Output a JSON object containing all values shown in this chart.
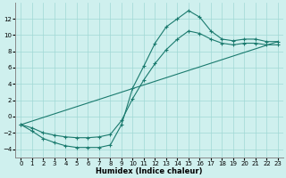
{
  "xlabel": "Humidex (Indice chaleur)",
  "background_color": "#cff0ee",
  "grid_color": "#a0d8d5",
  "line_color": "#1a7a6e",
  "xlim": [
    -0.5,
    23.5
  ],
  "ylim": [
    -5,
    14
  ],
  "xticks": [
    0,
    1,
    2,
    3,
    4,
    5,
    6,
    7,
    8,
    9,
    10,
    11,
    12,
    13,
    14,
    15,
    16,
    17,
    18,
    19,
    20,
    21,
    22,
    23
  ],
  "yticks": [
    -4,
    -2,
    0,
    2,
    4,
    6,
    8,
    10,
    12
  ],
  "line1_x": [
    0,
    1,
    2,
    3,
    4,
    5,
    6,
    7,
    8,
    9,
    10,
    11,
    12,
    13,
    14,
    15,
    16,
    17,
    18,
    19,
    20,
    21,
    22,
    23
  ],
  "line1_y": [
    -1,
    -1.8,
    -2.7,
    -3.2,
    -3.6,
    -3.8,
    -3.8,
    -3.8,
    -3.5,
    -1.0,
    3.5,
    6.2,
    9.0,
    11.0,
    12.0,
    13.0,
    12.2,
    10.5,
    9.5,
    9.3,
    9.5,
    9.5,
    9.2,
    9.2
  ],
  "line2_x": [
    0,
    1,
    2,
    3,
    4,
    5,
    6,
    7,
    8,
    9,
    10,
    11,
    12,
    13,
    14,
    15,
    16,
    17,
    18,
    19,
    20,
    21,
    22,
    23
  ],
  "line2_y": [
    -1,
    -1.4,
    -2.0,
    -2.3,
    -2.5,
    -2.6,
    -2.6,
    -2.5,
    -2.2,
    -0.5,
    2.2,
    4.5,
    6.5,
    8.2,
    9.5,
    10.5,
    10.2,
    9.5,
    9.0,
    8.8,
    9.0,
    9.0,
    8.8,
    8.8
  ],
  "line3_x": [
    0,
    23
  ],
  "line3_y": [
    -1,
    9.2
  ]
}
